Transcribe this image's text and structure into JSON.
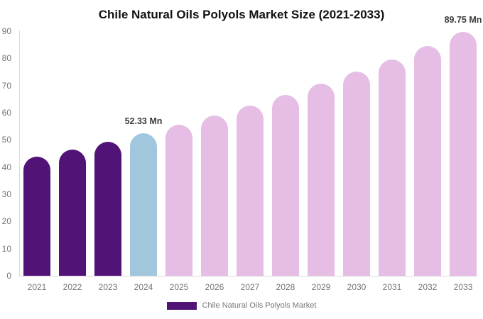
{
  "chart_data": {
    "type": "bar",
    "title": "Chile Natural Oils Polyols Market Size (2021-2033)",
    "categories": [
      "2021",
      "2022",
      "2023",
      "2024",
      "2025",
      "2026",
      "2027",
      "2028",
      "2029",
      "2030",
      "2031",
      "2032",
      "2033"
    ],
    "values": [
      43.7,
      46.4,
      49.3,
      52.33,
      55.6,
      59.0,
      62.6,
      66.5,
      70.6,
      75.0,
      79.6,
      84.5,
      89.75
    ],
    "unit": "Mn",
    "bar_colors": [
      "#521377",
      "#521377",
      "#521377",
      "#A0C7DD",
      "#E5BDE5",
      "#E5BDE5",
      "#E5BDE5",
      "#E5BDE5",
      "#E5BDE5",
      "#E5BDE5",
      "#E5BDE5",
      "#E5BDE5",
      "#E5BDE5"
    ],
    "annotations": [
      {
        "category": "2024",
        "text": "52.33 Mn"
      },
      {
        "category": "2033",
        "text": "89.75 Mn"
      }
    ],
    "xlabel": "",
    "ylabel": "",
    "ylim": [
      0,
      90
    ],
    "yticks": [
      0,
      10,
      20,
      30,
      40,
      50,
      60,
      70,
      80,
      90
    ],
    "grid": false,
    "legend": {
      "label": "Chile Natural Oils Polyols Market",
      "swatch_color": "#521377",
      "position": "bottom"
    }
  },
  "colors": {
    "historical_bar": "#521377",
    "current_year_bar": "#A0C7DD",
    "forecast_bar": "#E5BDE5",
    "axis_line": "#D8D8D8",
    "tick_label": "#757575",
    "annotation_text": "#3C3C3C",
    "title_text": "#111111",
    "legend_text": "#757575",
    "background": "#FFFFFF"
  }
}
